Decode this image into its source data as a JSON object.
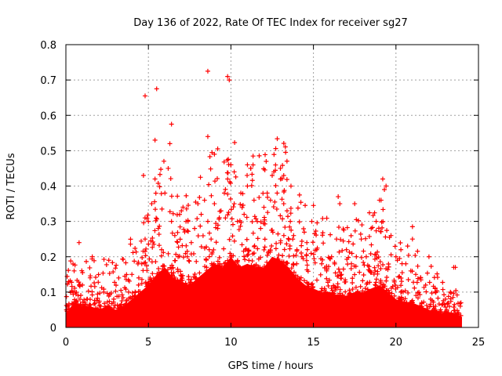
{
  "chart_data": {
    "type": "scatter",
    "title": "Day 136 of 2022, Rate Of TEC Index for receiver sg27",
    "xlabel": "GPS time / hours",
    "ylabel": "ROTI / TECUs",
    "xlim": [
      0,
      25
    ],
    "ylim": [
      0,
      0.8
    ],
    "x_ticks": [
      "0",
      "5",
      "10",
      "15",
      "20",
      "25"
    ],
    "y_ticks": [
      "0",
      "0.1",
      "0.2",
      "0.3",
      "0.4",
      "0.5",
      "0.6",
      "0.7",
      "0.8"
    ],
    "grid": true,
    "marker": "+",
    "color": "#ff0000",
    "series": [
      {
        "x": [
          0.2,
          0.5,
          0.8,
          1.0,
          1.3,
          1.6,
          2.0,
          2.3,
          2.6,
          2.9,
          3.2,
          3.5,
          3.8,
          4.0,
          4.2,
          4.4,
          4.6,
          4.8,
          5.0,
          5.2,
          5.4,
          5.6,
          5.8,
          6.0,
          6.2,
          6.4,
          6.6,
          6.8,
          7.0,
          7.2,
          7.4,
          7.6,
          7.8,
          8.0,
          8.2,
          8.4,
          8.6,
          8.8,
          9.0,
          9.2,
          9.4,
          9.6,
          9.8,
          10.0,
          10.2,
          10.4,
          10.6,
          10.8,
          11.0,
          11.2,
          11.4,
          11.6,
          11.8,
          12.0,
          12.2,
          12.4,
          12.6,
          12.8,
          13.0,
          13.2,
          13.4,
          13.6,
          13.8,
          14.0,
          14.3,
          14.6,
          14.9,
          15.2,
          15.5,
          15.8,
          16.1,
          16.4,
          16.7,
          17.0,
          17.3,
          17.6,
          17.9,
          18.2,
          18.5,
          18.8,
          19.1,
          19.4,
          19.7,
          20.0,
          20.3,
          20.6,
          20.9,
          21.2,
          21.5,
          21.8,
          22.1,
          22.4,
          22.7,
          23.0,
          23.3,
          23.6,
          23.9,
          4.7,
          4.8,
          5.4,
          5.5,
          6.3,
          6.4,
          8.6,
          8.6,
          9.0,
          9.8,
          9.9,
          10.0,
          10.2,
          11.0,
          11.2,
          12.5,
          13.0,
          13.2,
          15.0,
          16.5,
          16.6,
          17.5,
          17.6,
          19.0,
          19.2,
          19.3,
          21.0,
          21.0,
          22.0,
          23.5
        ],
        "y": [
          0.05,
          0.16,
          0.24,
          0.12,
          0.08,
          0.2,
          0.07,
          0.1,
          0.19,
          0.08,
          0.14,
          0.06,
          0.1,
          0.15,
          0.09,
          0.12,
          0.18,
          0.25,
          0.3,
          0.35,
          0.42,
          0.28,
          0.22,
          0.38,
          0.45,
          0.3,
          0.26,
          0.2,
          0.33,
          0.27,
          0.3,
          0.24,
          0.28,
          0.35,
          0.32,
          0.36,
          0.3,
          0.25,
          0.35,
          0.28,
          0.33,
          0.38,
          0.42,
          0.46,
          0.35,
          0.3,
          0.38,
          0.32,
          0.4,
          0.45,
          0.36,
          0.3,
          0.28,
          0.34,
          0.38,
          0.36,
          0.44,
          0.38,
          0.42,
          0.35,
          0.33,
          0.3,
          0.26,
          0.22,
          0.2,
          0.24,
          0.3,
          0.22,
          0.18,
          0.16,
          0.2,
          0.25,
          0.15,
          0.22,
          0.18,
          0.2,
          0.25,
          0.2,
          0.28,
          0.3,
          0.36,
          0.4,
          0.26,
          0.2,
          0.22,
          0.18,
          0.16,
          0.15,
          0.14,
          0.12,
          0.08,
          0.06,
          0.05,
          0.08,
          0.1,
          0.17,
          0.06,
          0.43,
          0.655,
          0.53,
          0.675,
          0.52,
          0.575,
          0.54,
          0.725,
          0.49,
          0.71,
          0.7,
          0.46,
          0.44,
          0.46,
          0.45,
          0.43,
          0.45,
          0.43,
          0.345,
          0.37,
          0.35,
          0.35,
          0.305,
          0.36,
          0.42,
          0.39,
          0.285,
          0.25,
          0.2,
          0.17
        ]
      }
    ],
    "envelope": [
      [
        0.0,
        0.04
      ],
      [
        0.5,
        0.07
      ],
      [
        1.0,
        0.06
      ],
      [
        1.5,
        0.06
      ],
      [
        2.0,
        0.05
      ],
      [
        2.5,
        0.06
      ],
      [
        3.0,
        0.05
      ],
      [
        3.5,
        0.06
      ],
      [
        4.0,
        0.08
      ],
      [
        4.5,
        0.1
      ],
      [
        5.0,
        0.12
      ],
      [
        5.5,
        0.15
      ],
      [
        6.0,
        0.17
      ],
      [
        6.5,
        0.14
      ],
      [
        7.0,
        0.13
      ],
      [
        7.5,
        0.12
      ],
      [
        8.0,
        0.14
      ],
      [
        8.5,
        0.16
      ],
      [
        9.0,
        0.18
      ],
      [
        9.5,
        0.17
      ],
      [
        10.0,
        0.2
      ],
      [
        10.5,
        0.17
      ],
      [
        11.0,
        0.18
      ],
      [
        11.5,
        0.17
      ],
      [
        12.0,
        0.17
      ],
      [
        12.5,
        0.2
      ],
      [
        13.0,
        0.19
      ],
      [
        13.5,
        0.17
      ],
      [
        14.0,
        0.14
      ],
      [
        14.5,
        0.12
      ],
      [
        15.0,
        0.11
      ],
      [
        15.5,
        0.1
      ],
      [
        16.0,
        0.1
      ],
      [
        16.5,
        0.09
      ],
      [
        17.0,
        0.09
      ],
      [
        17.5,
        0.1
      ],
      [
        18.0,
        0.1
      ],
      [
        18.5,
        0.11
      ],
      [
        19.0,
        0.12
      ],
      [
        19.5,
        0.1
      ],
      [
        20.0,
        0.08
      ],
      [
        20.5,
        0.07
      ],
      [
        21.0,
        0.07
      ],
      [
        21.5,
        0.06
      ],
      [
        22.0,
        0.05
      ],
      [
        22.5,
        0.04
      ],
      [
        23.0,
        0.04
      ],
      [
        23.5,
        0.04
      ],
      [
        24.0,
        0.03
      ]
    ]
  }
}
